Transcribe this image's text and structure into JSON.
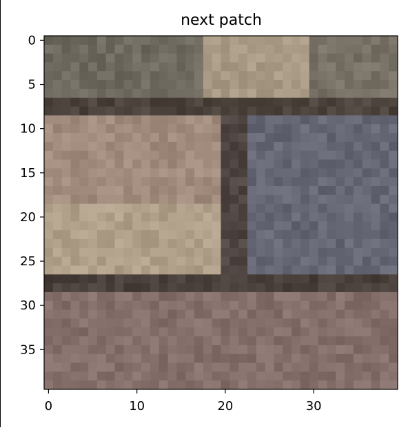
{
  "chart_data": {
    "type": "heatmap",
    "title": "next patch",
    "xlabel": "",
    "ylabel": "",
    "xlim": [
      -0.5,
      39.5
    ],
    "ylim": [
      39.5,
      -0.5
    ],
    "xticks": [
      0,
      10,
      20,
      30
    ],
    "yticks": [
      0,
      5,
      10,
      15,
      20,
      25,
      30,
      35
    ],
    "grid": false,
    "legend": "none",
    "image_size": [
      40,
      40
    ],
    "regions": [
      {
        "rows": [
          0,
          6
        ],
        "cols": [
          0,
          18
        ],
        "color": "#6f6a5f",
        "description": "dark olive stones"
      },
      {
        "rows": [
          0,
          6
        ],
        "cols": [
          18,
          30
        ],
        "color": "#a99a85",
        "description": "tan stone"
      },
      {
        "rows": [
          0,
          6
        ],
        "cols": [
          30,
          40
        ],
        "color": "#777166",
        "description": "gray-brown stone"
      },
      {
        "rows": [
          7,
          8
        ],
        "cols": [
          0,
          40
        ],
        "color": "#4d433d",
        "description": "dark mortar line"
      },
      {
        "rows": [
          9,
          26
        ],
        "cols": [
          0,
          20
        ],
        "color": "#a08b7d",
        "description": "light pinkish stone"
      },
      {
        "rows": [
          19,
          26
        ],
        "cols": [
          0,
          20
        ],
        "color": "#b0a08a",
        "description": "lighter lower edge"
      },
      {
        "rows": [
          9,
          26
        ],
        "cols": [
          20,
          23
        ],
        "color": "#4f4542",
        "description": "dark gap"
      },
      {
        "rows": [
          9,
          26
        ],
        "cols": [
          23,
          40
        ],
        "color": "#656775",
        "description": "blue-gray stone"
      },
      {
        "rows": [
          27,
          28
        ],
        "cols": [
          0,
          40
        ],
        "color": "#4a403b",
        "description": "dark mortar line"
      },
      {
        "rows": [
          29,
          39
        ],
        "cols": [
          0,
          40
        ],
        "color": "#856f6a",
        "description": "reddish-brown stone"
      }
    ]
  }
}
